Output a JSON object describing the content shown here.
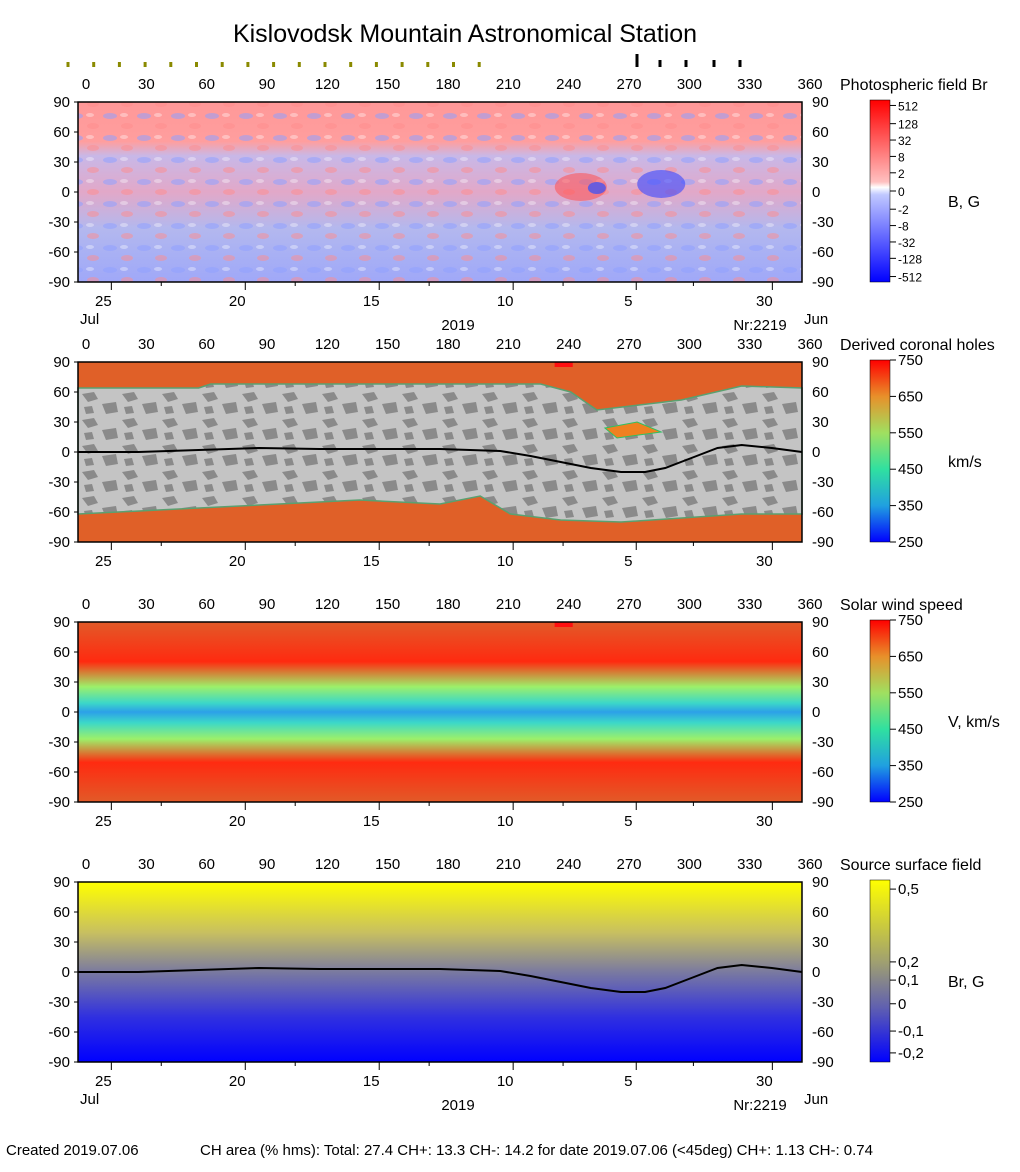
{
  "title": "Kislovodsk Mountain Astronomical Station",
  "footer": {
    "created": "Created  2019.07.06",
    "stats": "CH area (% hms): Total: 27.4 CH+: 13.3   CH-: 14.2 for date 2019.07.06 (<45deg) CH+: 1.13    CH-: 0.74"
  },
  "chart_data": [
    {
      "type": "heatmap",
      "title": "Photospheric field Br",
      "colorbar_label": "B, G",
      "colorbar_ticks": [
        "512",
        "128",
        "32",
        "8",
        "2",
        "0",
        "-2",
        "-8",
        "-32",
        "-128",
        "-512"
      ],
      "x_ticks": [
        "0",
        "30",
        "60",
        "90",
        "120",
        "150",
        "180",
        "210",
        "240",
        "270",
        "300",
        "330",
        "360"
      ],
      "y_ticks": [
        "90",
        "60",
        "30",
        "0",
        "-30",
        "-60",
        "-90"
      ],
      "date_ticks": [
        "25",
        "20",
        "15",
        "10",
        "5",
        "30"
      ],
      "month_left": "Jul",
      "month_right": "Jun",
      "year": "2019",
      "rotation": "Nr:2219",
      "xlim": [
        0,
        360
      ],
      "ylim": [
        -90,
        90
      ]
    },
    {
      "type": "heatmap",
      "title": "Derived coronal holes",
      "colorbar_label": "km/s",
      "colorbar_ticks": [
        "750",
        "650",
        "550",
        "450",
        "350",
        "250"
      ],
      "x_ticks": [
        "0",
        "30",
        "60",
        "90",
        "120",
        "150",
        "180",
        "210",
        "240",
        "270",
        "300",
        "330",
        "360"
      ],
      "y_ticks": [
        "90",
        "60",
        "30",
        "0",
        "-30",
        "-60",
        "-90"
      ],
      "date_ticks": [
        "25",
        "20",
        "15",
        "10",
        "5",
        "30"
      ],
      "xlim": [
        0,
        360
      ],
      "ylim": [
        -90,
        90
      ],
      "neutral_line": {
        "x": [
          0,
          30,
          60,
          90,
          120,
          150,
          180,
          210,
          225,
          240,
          255,
          270,
          282,
          292,
          305,
          318,
          330,
          345,
          360
        ],
        "y": [
          0,
          0,
          2,
          4,
          3,
          3,
          3,
          1,
          -4,
          -10,
          -16,
          -20,
          -20,
          -16,
          -6,
          4,
          7,
          4,
          0
        ]
      }
    },
    {
      "type": "heatmap",
      "title": "Solar wind speed",
      "colorbar_label": "V, km/s",
      "colorbar_ticks": [
        "750",
        "650",
        "550",
        "450",
        "350",
        "250"
      ],
      "x_ticks": [
        "0",
        "30",
        "60",
        "90",
        "120",
        "150",
        "180",
        "210",
        "240",
        "270",
        "300",
        "330",
        "360"
      ],
      "y_ticks": [
        "90",
        "60",
        "30",
        "0",
        "-30",
        "-60",
        "-90"
      ],
      "date_ticks": [
        "25",
        "20",
        "15",
        "10",
        "5",
        "30"
      ],
      "xlim": [
        0,
        360
      ],
      "ylim": [
        -90,
        90
      ]
    },
    {
      "type": "heatmap",
      "title": "Source surface field",
      "colorbar_label": "Br, G",
      "colorbar_ticks": [
        "0,5",
        "0,2",
        "0,1",
        "0",
        "-0,1",
        "-0,2"
      ],
      "x_ticks": [
        "0",
        "30",
        "60",
        "90",
        "120",
        "150",
        "180",
        "210",
        "240",
        "270",
        "300",
        "330",
        "360"
      ],
      "y_ticks": [
        "90",
        "60",
        "30",
        "0",
        "-30",
        "-60",
        "-90"
      ],
      "date_ticks": [
        "25",
        "20",
        "15",
        "10",
        "5",
        "30"
      ],
      "month_left": "Jul",
      "month_right": "Jun",
      "year": "2019",
      "rotation": "Nr:2219",
      "xlim": [
        0,
        360
      ],
      "ylim": [
        -90,
        90
      ],
      "neutral_line": {
        "x": [
          0,
          30,
          60,
          90,
          120,
          150,
          180,
          210,
          225,
          240,
          255,
          270,
          282,
          292,
          305,
          318,
          330,
          345,
          360
        ],
        "y": [
          0,
          0,
          2,
          4,
          3,
          3,
          3,
          1,
          -4,
          -10,
          -16,
          -20,
          -20,
          -16,
          -6,
          4,
          7,
          4,
          0
        ]
      }
    }
  ]
}
